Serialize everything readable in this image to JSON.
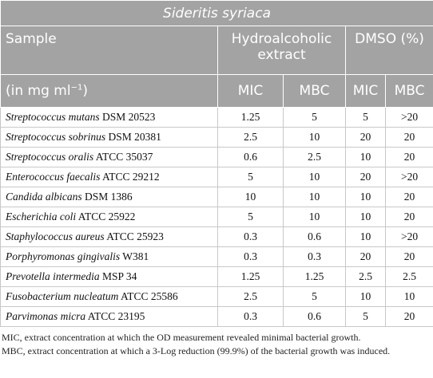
{
  "table": {
    "title": "Sideritis syriaca",
    "header": {
      "sample": "Sample",
      "group1": "Hydroalcoholic extract",
      "group2": "DMSO (%)",
      "unit_prefix": "(in mg ml",
      "unit_exponent": "−1",
      "unit_suffix": ")",
      "columns": [
        "MIC",
        "MBC",
        "MIC",
        "MBC"
      ]
    },
    "rows": [
      {
        "species": "Streptococcus mutans",
        "strain": "DSM 20523",
        "values": [
          "1.25",
          "5",
          "5",
          ">20"
        ]
      },
      {
        "species": "Streptococcus sobrinus",
        "strain": "DSM 20381",
        "values": [
          "2.5",
          "10",
          "20",
          "20"
        ]
      },
      {
        "species": "Streptococcus oralis",
        "strain": "ATCC 35037",
        "values": [
          "0.6",
          "2.5",
          "10",
          "20"
        ]
      },
      {
        "species": "Enterococcus faecalis",
        "strain": "ATCC 29212",
        "values": [
          "5",
          "10",
          "20",
          ">20"
        ]
      },
      {
        "species": "Candida albicans",
        "strain": "DSM 1386",
        "values": [
          "10",
          "10",
          "10",
          "20"
        ]
      },
      {
        "species": "Escherichia coli",
        "strain": "ATCC 25922",
        "values": [
          "5",
          "10",
          "10",
          "20"
        ]
      },
      {
        "species": "Staphylococcus aureus",
        "strain": "ATCC 25923",
        "values": [
          "0.3",
          "0.6",
          "10",
          ">20"
        ]
      },
      {
        "species": "Porphyromonas gingivalis",
        "strain": "W381",
        "values": [
          "0.3",
          "0.3",
          "20",
          "20"
        ]
      },
      {
        "species": "Prevotella intermedia",
        "strain": "MSP 34",
        "values": [
          "1.25",
          "1.25",
          "2.5",
          "2.5"
        ]
      },
      {
        "species": "Fusobacterium nucleatum",
        "strain": "ATCC 25586",
        "values": [
          "2.5",
          "5",
          "10",
          "10"
        ]
      },
      {
        "species": "Parvimonas micra",
        "strain": "ATCC 23195",
        "values": [
          "0.3",
          "0.6",
          "5",
          "20"
        ]
      }
    ],
    "notes": [
      "MIC, extract concentration at which the OD measurement revealed minimal bacterial growth.",
      "MBC, extract concentration at which a 3-Log reduction (99.9%) of the bacterial growth was induced."
    ]
  }
}
